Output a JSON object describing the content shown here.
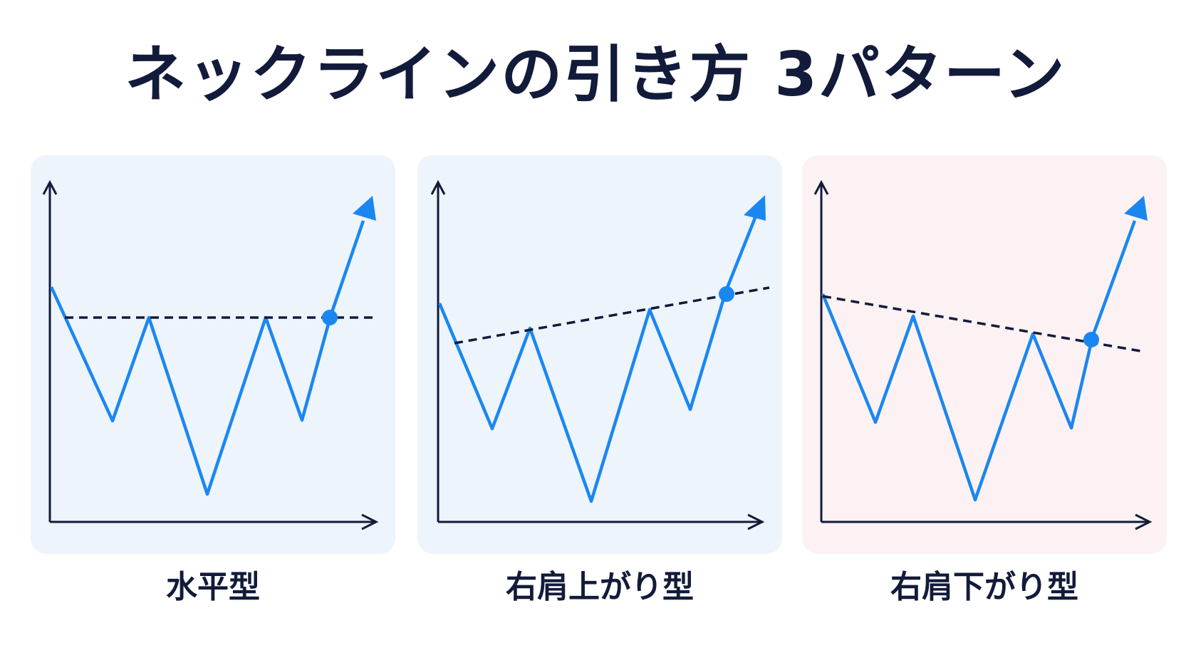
{
  "title": "ネックラインの引き方 3パターン",
  "colors": {
    "axis": "#121b3a",
    "price_line": "#1a87f0",
    "neckline": "#121b3a",
    "panel_blue": "#edf4fc",
    "panel_pink": "#fdf2f3"
  },
  "patterns": [
    {
      "label": "水平型",
      "panel_color": "#edf4fc",
      "neckline_slope": "horizontal"
    },
    {
      "label": "右肩上がり型",
      "panel_color": "#edf4fc",
      "neckline_slope": "rising"
    },
    {
      "label": "右肩下がり型",
      "panel_color": "#fdf2f3",
      "neckline_slope": "falling"
    }
  ]
}
